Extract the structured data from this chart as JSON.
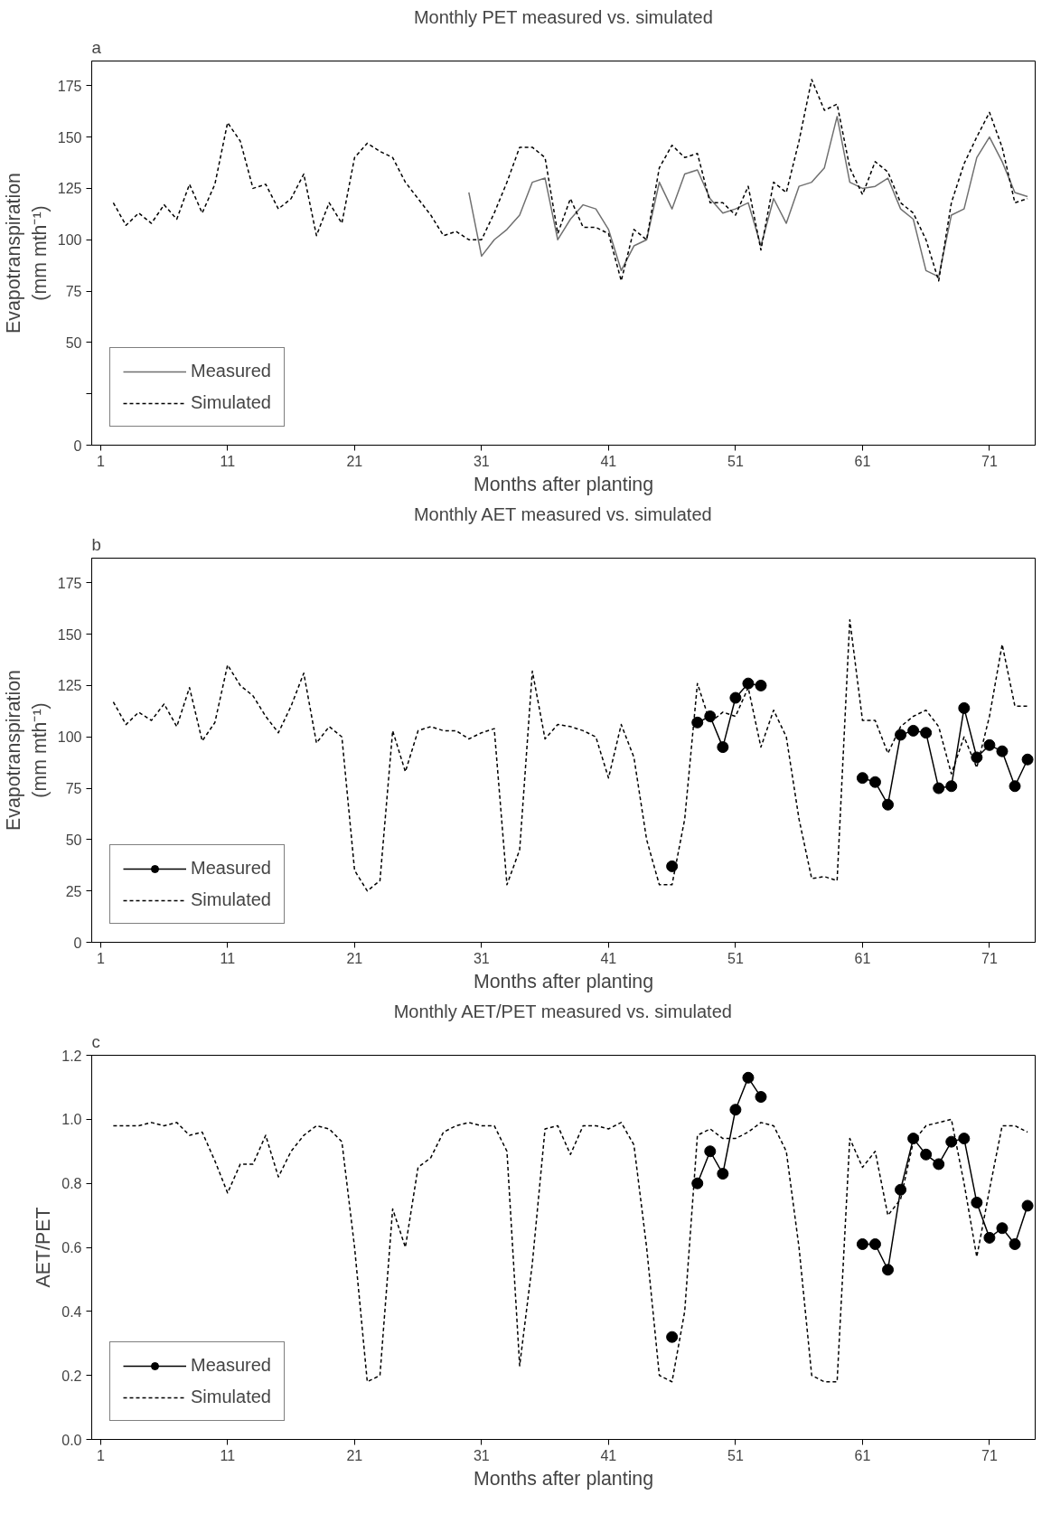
{
  "chart_data": [
    {
      "type": "line",
      "title": "Monthly PET measured vs. simulated",
      "xlabel": "Months after planting",
      "ylabel": "Evapotranspiration\n(mm mth⁻¹)",
      "annotations": [
        "a"
      ],
      "xlim": [
        0.3,
        74.6
      ],
      "xticks": [
        1,
        11,
        21,
        31,
        41,
        51,
        61,
        71
      ],
      "ylim": [
        0,
        187
      ],
      "yticks": [
        0,
        {
          "value": 25,
          "label": null
        },
        50,
        75,
        100,
        125,
        150,
        175
      ],
      "grid": false,
      "legend": "bottom left",
      "series": [
        {
          "name": "Measured",
          "color": "#707070",
          "line_style": "solid",
          "marker": "none",
          "x": [
            30,
            31,
            32,
            33,
            34,
            35,
            36,
            37,
            38,
            39,
            40,
            41,
            42,
            43,
            44,
            45,
            46,
            47,
            48,
            49,
            50,
            51,
            52,
            53,
            54,
            55,
            56,
            57,
            58,
            59,
            60,
            61,
            62,
            63,
            64,
            65,
            66,
            67,
            68,
            69,
            70,
            71,
            72,
            73,
            74
          ],
          "values": [
            123,
            92,
            100,
            105,
            112,
            128,
            130,
            100,
            110,
            117,
            115,
            105,
            85,
            97,
            100,
            128,
            115,
            132,
            134,
            120,
            113,
            115,
            118,
            97,
            120,
            108,
            126,
            128,
            135,
            160,
            128,
            125,
            126,
            130,
            115,
            110,
            85,
            82,
            112,
            115,
            140,
            150,
            138,
            123,
            121
          ]
        },
        {
          "name": "Simulated",
          "color": "#000000",
          "line_style": "dashed",
          "marker": "none",
          "x": [
            2,
            3,
            4,
            5,
            6,
            7,
            8,
            9,
            10,
            11,
            12,
            13,
            14,
            15,
            16,
            17,
            18,
            19,
            20,
            21,
            22,
            23,
            24,
            25,
            26,
            27,
            28,
            29,
            30,
            31,
            32,
            33,
            34,
            35,
            36,
            37,
            38,
            39,
            40,
            41,
            42,
            43,
            44,
            45,
            46,
            47,
            48,
            49,
            50,
            51,
            52,
            53,
            54,
            55,
            56,
            57,
            58,
            59,
            60,
            61,
            62,
            63,
            64,
            65,
            66,
            67,
            68,
            69,
            70,
            71,
            72,
            73,
            74
          ],
          "values": [
            118,
            107,
            113,
            108,
            117,
            110,
            127,
            113,
            127,
            157,
            148,
            125,
            127,
            115,
            120,
            132,
            102,
            118,
            108,
            140,
            147,
            143,
            140,
            128,
            120,
            112,
            102,
            104,
            100,
            100,
            113,
            128,
            145,
            145,
            140,
            103,
            120,
            106,
            106,
            103,
            80,
            105,
            100,
            135,
            146,
            140,
            142,
            118,
            118,
            112,
            126,
            95,
            128,
            123,
            148,
            178,
            163,
            166,
            135,
            122,
            138,
            133,
            118,
            113,
            100,
            80,
            118,
            137,
            150,
            162,
            145,
            118,
            120
          ]
        }
      ]
    },
    {
      "type": "line",
      "title": "Monthly AET measured vs. simulated",
      "xlabel": "Months after planting",
      "ylabel": "Evapotranspiration\n(mm mth⁻¹)",
      "annotations": [
        "b"
      ],
      "xlim": [
        0.3,
        74.6
      ],
      "xticks": [
        1,
        11,
        21,
        31,
        41,
        51,
        61,
        71
      ],
      "ylim": [
        0,
        187
      ],
      "yticks": [
        0,
        25,
        50,
        75,
        100,
        125,
        150,
        175
      ],
      "grid": false,
      "legend": "bottom left",
      "series": [
        {
          "name": "Measured",
          "color": "#000000",
          "line_style": "solid",
          "marker": "circle",
          "x": [
            46,
            47,
            48,
            49,
            50,
            51,
            52,
            53,
            54,
            61,
            62,
            63,
            64,
            65,
            66,
            67,
            68,
            69,
            70,
            71,
            72,
            73,
            74
          ],
          "values": [
            37,
            null,
            107,
            110,
            95,
            119,
            126,
            125,
            null,
            80,
            78,
            67,
            101,
            103,
            102,
            75,
            76,
            114,
            90,
            96,
            93,
            76,
            89
          ]
        },
        {
          "name": "Simulated",
          "color": "#000000",
          "line_style": "dashed",
          "marker": "none",
          "x": [
            2,
            3,
            4,
            5,
            6,
            7,
            8,
            9,
            10,
            11,
            12,
            13,
            14,
            15,
            16,
            17,
            18,
            19,
            20,
            21,
            22,
            23,
            24,
            25,
            26,
            27,
            28,
            29,
            30,
            31,
            32,
            33,
            34,
            35,
            36,
            37,
            38,
            39,
            40,
            41,
            42,
            43,
            44,
            45,
            46,
            47,
            48,
            49,
            50,
            51,
            52,
            53,
            54,
            55,
            56,
            57,
            58,
            59,
            60,
            61,
            62,
            63,
            64,
            65,
            66,
            67,
            68,
            69,
            70,
            71,
            72,
            73,
            74
          ],
          "values": [
            117,
            106,
            112,
            108,
            116,
            105,
            124,
            98,
            107,
            135,
            125,
            120,
            110,
            102,
            115,
            131,
            97,
            105,
            100,
            35,
            25,
            30,
            103,
            83,
            103,
            105,
            103,
            103,
            99,
            102,
            104,
            28,
            45,
            132,
            99,
            106,
            105,
            103,
            100,
            80,
            106,
            90,
            50,
            28,
            28,
            60,
            126,
            107,
            112,
            110,
            124,
            95,
            113,
            100,
            60,
            31,
            32,
            30,
            157,
            108,
            108,
            92,
            105,
            110,
            113,
            105,
            82,
            100,
            85,
            110,
            145,
            115,
            115
          ]
        }
      ]
    },
    {
      "type": "line",
      "title": "Monthly AET/PET measured vs. simulated",
      "xlabel": "Months after planting",
      "ylabel": "AET/PET",
      "annotations": [
        "c"
      ],
      "xlim": [
        0.3,
        74.6
      ],
      "xticks": [
        1,
        11,
        21,
        31,
        41,
        51,
        61,
        71
      ],
      "ylim": [
        0,
        1.2
      ],
      "yticks": [
        {
          "value": 0,
          "label": "0.0"
        },
        0.2,
        0.4,
        0.6,
        0.8,
        {
          "value": 1,
          "label": "1.0"
        },
        1.2
      ],
      "grid": false,
      "legend": "bottom left",
      "series": [
        {
          "name": "Measured",
          "color": "#000000",
          "line_style": "solid",
          "marker": "circle",
          "x": [
            46,
            47,
            48,
            49,
            50,
            51,
            52,
            53,
            54,
            61,
            62,
            63,
            64,
            65,
            66,
            67,
            68,
            69,
            70,
            71,
            72,
            73,
            74
          ],
          "values": [
            0.32,
            null,
            0.8,
            0.9,
            0.83,
            1.03,
            1.13,
            1.07,
            null,
            0.61,
            0.61,
            0.53,
            0.78,
            0.94,
            0.89,
            0.86,
            0.93,
            0.94,
            0.74,
            0.63,
            0.66,
            0.61,
            0.73
          ]
        },
        {
          "name": "Simulated",
          "color": "#000000",
          "line_style": "dashed",
          "marker": "none",
          "x": [
            2,
            3,
            4,
            5,
            6,
            7,
            8,
            9,
            10,
            11,
            12,
            13,
            14,
            15,
            16,
            17,
            18,
            19,
            20,
            21,
            22,
            23,
            24,
            25,
            26,
            27,
            28,
            29,
            30,
            31,
            32,
            33,
            34,
            35,
            36,
            37,
            38,
            39,
            40,
            41,
            42,
            43,
            44,
            45,
            46,
            47,
            48,
            49,
            50,
            51,
            52,
            53,
            54,
            55,
            56,
            57,
            58,
            59,
            60,
            61,
            62,
            63,
            64,
            65,
            66,
            67,
            68,
            69,
            70,
            71,
            72,
            73,
            74
          ],
          "values": [
            0.98,
            0.98,
            0.98,
            0.99,
            0.98,
            0.99,
            0.95,
            0.96,
            0.87,
            0.77,
            0.86,
            0.86,
            0.95,
            0.82,
            0.9,
            0.95,
            0.98,
            0.97,
            0.93,
            0.6,
            0.18,
            0.2,
            0.72,
            0.6,
            0.85,
            0.88,
            0.96,
            0.98,
            0.99,
            0.98,
            0.98,
            0.9,
            0.23,
            0.55,
            0.97,
            0.98,
            0.89,
            0.98,
            0.98,
            0.97,
            0.99,
            0.92,
            0.6,
            0.2,
            0.18,
            0.4,
            0.95,
            0.97,
            0.94,
            0.94,
            0.96,
            0.99,
            0.98,
            0.9,
            0.6,
            0.2,
            0.18,
            0.18,
            0.94,
            0.85,
            0.9,
            0.7,
            0.75,
            0.93,
            0.98,
            0.99,
            1.0,
            0.8,
            0.57,
            0.78,
            0.98,
            0.98,
            0.96
          ]
        }
      ]
    }
  ]
}
